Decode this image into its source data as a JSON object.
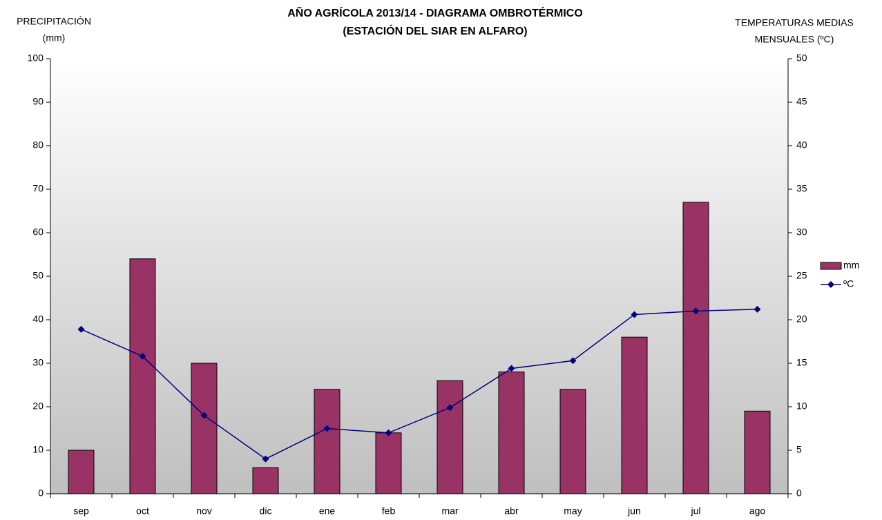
{
  "chart_data": {
    "type": "bar",
    "title": [
      "AÑO AGRÍCOLA 2013/14 - DIAGRAMA OMBROTÉRMICO",
      "(ESTACIÓN DEL SIAR EN  ALFARO)"
    ],
    "y_label": [
      "PRECIPITACIÓN",
      "(mm)"
    ],
    "y2_label": [
      "TEMPERATURAS MEDIAS",
      "MENSUALES  (ºC)"
    ],
    "categories": [
      "sep",
      "oct",
      "nov",
      "dic",
      "ene",
      "feb",
      "mar",
      "abr",
      "may",
      "jun",
      "jul",
      "ago"
    ],
    "series": [
      {
        "name": "mm",
        "type": "bar",
        "color": "#993366",
        "values": [
          10,
          54,
          30,
          6,
          24,
          14,
          26,
          28,
          24,
          36,
          67,
          19
        ]
      },
      {
        "name": "ºC",
        "type": "line",
        "axis": "y2",
        "color": "#000080",
        "values": [
          18.9,
          15.8,
          9.0,
          4.0,
          7.5,
          7.0,
          9.9,
          14.4,
          15.3,
          20.6,
          21.0,
          21.2
        ]
      }
    ],
    "ylim": [
      0,
      100
    ],
    "yticks": [
      0,
      10,
      20,
      30,
      40,
      50,
      60,
      70,
      80,
      90,
      100
    ],
    "y2lim": [
      0,
      50
    ],
    "y2ticks": [
      0,
      5,
      10,
      15,
      20,
      25,
      30,
      35,
      40,
      45,
      50
    ],
    "legend": "right"
  }
}
